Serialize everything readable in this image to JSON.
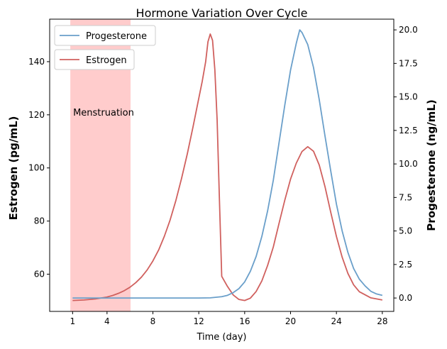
{
  "chart_data": {
    "type": "line",
    "title": "Hormone Variation Over Cycle",
    "xlabel": "Time (day)",
    "ylabel_left": "Estrogen (pg/mL)",
    "ylabel_right": "Progesterone (ng/mL)",
    "xlim": [
      -1,
      29
    ],
    "ylim_left": [
      46,
      156
    ],
    "ylim_right": [
      -1,
      20.8
    ],
    "xticks": [
      1,
      4,
      8,
      12,
      16,
      20,
      24,
      28
    ],
    "yticks_left": [
      60,
      80,
      100,
      120,
      140
    ],
    "yticks_right": [
      0.0,
      2.5,
      5.0,
      7.5,
      10.0,
      12.5,
      15.0,
      17.5,
      20.0
    ],
    "grid": false,
    "colors": {
      "estrogen": "#d0605e",
      "progesterone": "#6a9fca",
      "band": "#ffcccc",
      "estrogen_label": "#e06666",
      "progesterone_label": "#6fa8dc"
    },
    "series": [
      {
        "name": "Estrogen",
        "axis": "left",
        "x": [
          1,
          2,
          3,
          4,
          4.5,
          5,
          5.5,
          6,
          6.5,
          7,
          7.5,
          8,
          8.5,
          9,
          9.5,
          10,
          10.5,
          11,
          11.5,
          12,
          12.3,
          12.6,
          12.8,
          13,
          13.2,
          13.4,
          13.6,
          13.8,
          14,
          14.5,
          15,
          15.5,
          16,
          16.5,
          17,
          17.5,
          18,
          18.5,
          19,
          19.5,
          20,
          20.5,
          21,
          21.5,
          22,
          22.5,
          23,
          23.5,
          24,
          24.5,
          25,
          25.5,
          26,
          27,
          28
        ],
        "y": [
          50.1,
          50.3,
          50.7,
          51.4,
          52,
          52.8,
          53.8,
          55.1,
          56.8,
          58.9,
          61.6,
          65,
          69.1,
          74.3,
          80.4,
          87.7,
          96.1,
          105.3,
          115.5,
          126.2,
          132.6,
          140,
          147.5,
          150.4,
          148,
          137,
          118,
          88,
          59.2,
          55.4,
          52.2,
          50.5,
          50.1,
          51,
          53.5,
          57.5,
          63.3,
          70.3,
          79.2,
          87.9,
          95.8,
          101.8,
          106.2,
          108,
          106.3,
          101.1,
          93,
          83.4,
          74.2,
          66.4,
          60.3,
          56,
          53.4,
          51.1,
          50.3
        ]
      },
      {
        "name": "Progesterone",
        "axis": "right",
        "x": [
          1,
          2,
          4,
          6,
          8,
          10,
          12,
          13,
          14,
          14.5,
          15,
          15.5,
          16,
          16.5,
          17,
          17.5,
          18,
          18.5,
          19,
          19.5,
          20,
          20.5,
          20.8,
          21,
          21.5,
          22,
          22.5,
          23,
          23.5,
          24,
          24.5,
          25,
          25.5,
          26,
          26.5,
          27,
          27.5,
          28
        ],
        "y": [
          0,
          0,
          0,
          0,
          0,
          0,
          0,
          0.01,
          0.1,
          0.2,
          0.4,
          0.7,
          1.2,
          2,
          3.1,
          4.6,
          6.5,
          8.8,
          11.6,
          14.4,
          17,
          19,
          20,
          19.8,
          18.9,
          17.2,
          14.8,
          12.1,
          9.5,
          7,
          5,
          3.4,
          2.2,
          1.4,
          0.9,
          0.5,
          0.3,
          0.2
        ]
      }
    ],
    "band": {
      "x0": 0.8,
      "x1": 6.05,
      "label": "Menstruation",
      "label_x": 3.7,
      "label_y": 121
    },
    "legend": [
      {
        "label": "Progesterone",
        "placement": "top-left"
      },
      {
        "label": "Estrogen",
        "placement": "top-left"
      }
    ]
  }
}
